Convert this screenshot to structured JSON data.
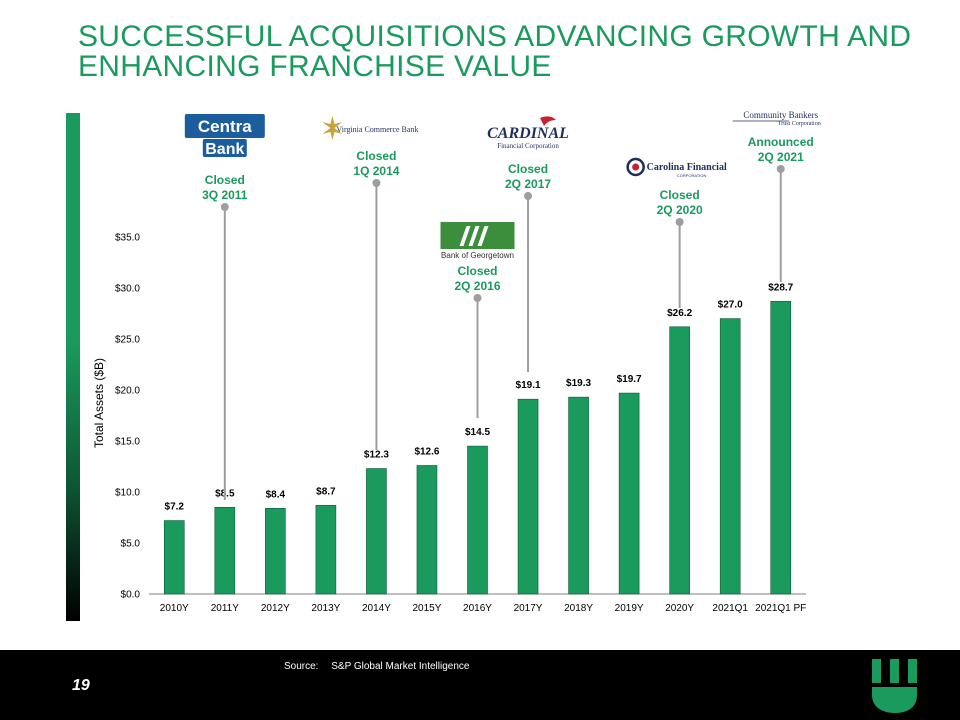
{
  "slide": {
    "title_line1": "SUCCESSFUL ACQUISITIONS ADVANCING GROWTH AND",
    "title_line2": "ENHANCING FRANCHISE VALUE",
    "source_label": "Source:",
    "source_text": "S&P Global Market Intelligence",
    "page_number": "19"
  },
  "colors": {
    "accent": "#1a9a5c",
    "bar": "#1a9a5c",
    "connector": "#9e9e9e",
    "footer": "#000000"
  },
  "chart_data": {
    "type": "bar",
    "ylabel": "Total Assets ($B)",
    "ylim": [
      0,
      35
    ],
    "yticks": [
      0,
      5,
      10,
      15,
      20,
      25,
      30,
      35
    ],
    "ytick_labels": [
      "$0.0",
      "$5.0",
      "$10.0",
      "$15.0",
      "$20.0",
      "$25.0",
      "$30.0",
      "$35.0"
    ],
    "categories": [
      "2010Y",
      "2011Y",
      "2012Y",
      "2013Y",
      "2014Y",
      "2015Y",
      "2016Y",
      "2017Y",
      "2018Y",
      "2019Y",
      "2020Y",
      "2021Q1",
      "2021Q1 PF"
    ],
    "values": [
      7.2,
      8.5,
      8.4,
      8.7,
      12.3,
      12.6,
      14.5,
      19.1,
      19.3,
      19.7,
      26.2,
      27.0,
      28.7
    ],
    "value_labels": [
      "$7.2",
      "$8.5",
      "$8.4",
      "$8.7",
      "$12.3",
      "$12.6",
      "$14.5",
      "$19.1",
      "$19.3",
      "$19.7",
      "$26.2",
      "$27.0",
      "$28.7"
    ],
    "annotations": [
      {
        "bar_index": 1,
        "logo": "Centra Bank",
        "logo_line1": "Centra",
        "logo_line2": "Bank",
        "status": "Closed",
        "period": "3Q 2011"
      },
      {
        "bar_index": 4,
        "logo": "Virginia Commerce Bank",
        "status": "Closed",
        "period": "1Q 2014"
      },
      {
        "bar_index": 6,
        "logo": "Bank of Georgetown",
        "status": "Closed",
        "period": "2Q 2016"
      },
      {
        "bar_index": 7,
        "logo": "Cardinal",
        "logo_sub": "Financial Corporation",
        "status": "Closed",
        "period": "2Q 2017"
      },
      {
        "bar_index": 10,
        "logo": "Carolina Financial",
        "logo_sub": "CORPORATION",
        "status": "Closed",
        "period": "2Q 2020"
      },
      {
        "bar_index": 12,
        "logo": "Community Bankers",
        "logo_sub": "Trust Corporation",
        "status": "Announced",
        "period": "2Q 2021"
      }
    ]
  }
}
